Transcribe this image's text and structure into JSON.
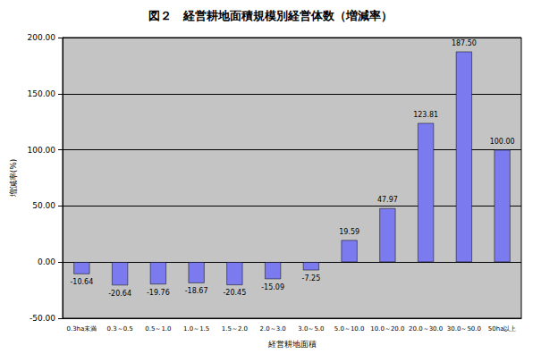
{
  "chart_data": {
    "type": "bar",
    "title": "図２　経営耕地面積規模別経営体数（増減率）",
    "x_label": "経営耕地面積",
    "y_label": "増減率(%)",
    "categories": [
      "0.3ha未満",
      "0.3～0.5",
      "0.5～1.0",
      "1.0～1.5",
      "1.5～2.0",
      "2.0～3.0",
      "3.0～5.0",
      "5.0～10.0",
      "10.0～20.0",
      "20.0～30.0",
      "30.0～50.0",
      "50ha以上"
    ],
    "values": [
      -10.64,
      -20.64,
      -19.76,
      -18.67,
      -20.45,
      -15.09,
      -7.25,
      19.59,
      47.97,
      123.81,
      187.5,
      100
    ],
    "value_labels": [
      "-10.64",
      "-20.64",
      "-19.76",
      "-18.67",
      "-20.45",
      "-15.09",
      "-7.25",
      "19.59",
      "47.97",
      "123.81",
      "187.50",
      "100.00"
    ],
    "data_labels": true,
    "color": "#7b7bef",
    "ylim": [
      -50,
      200
    ],
    "yticks": [
      {
        "value": -50,
        "label": "-50.00"
      },
      {
        "value": 0,
        "label": "0.00"
      },
      {
        "value": 50,
        "label": "50.00"
      },
      {
        "value": 100,
        "label": "100.00"
      },
      {
        "value": 150,
        "label": "150.00"
      },
      {
        "value": 200,
        "label": "200.00"
      }
    ],
    "grid": true
  }
}
